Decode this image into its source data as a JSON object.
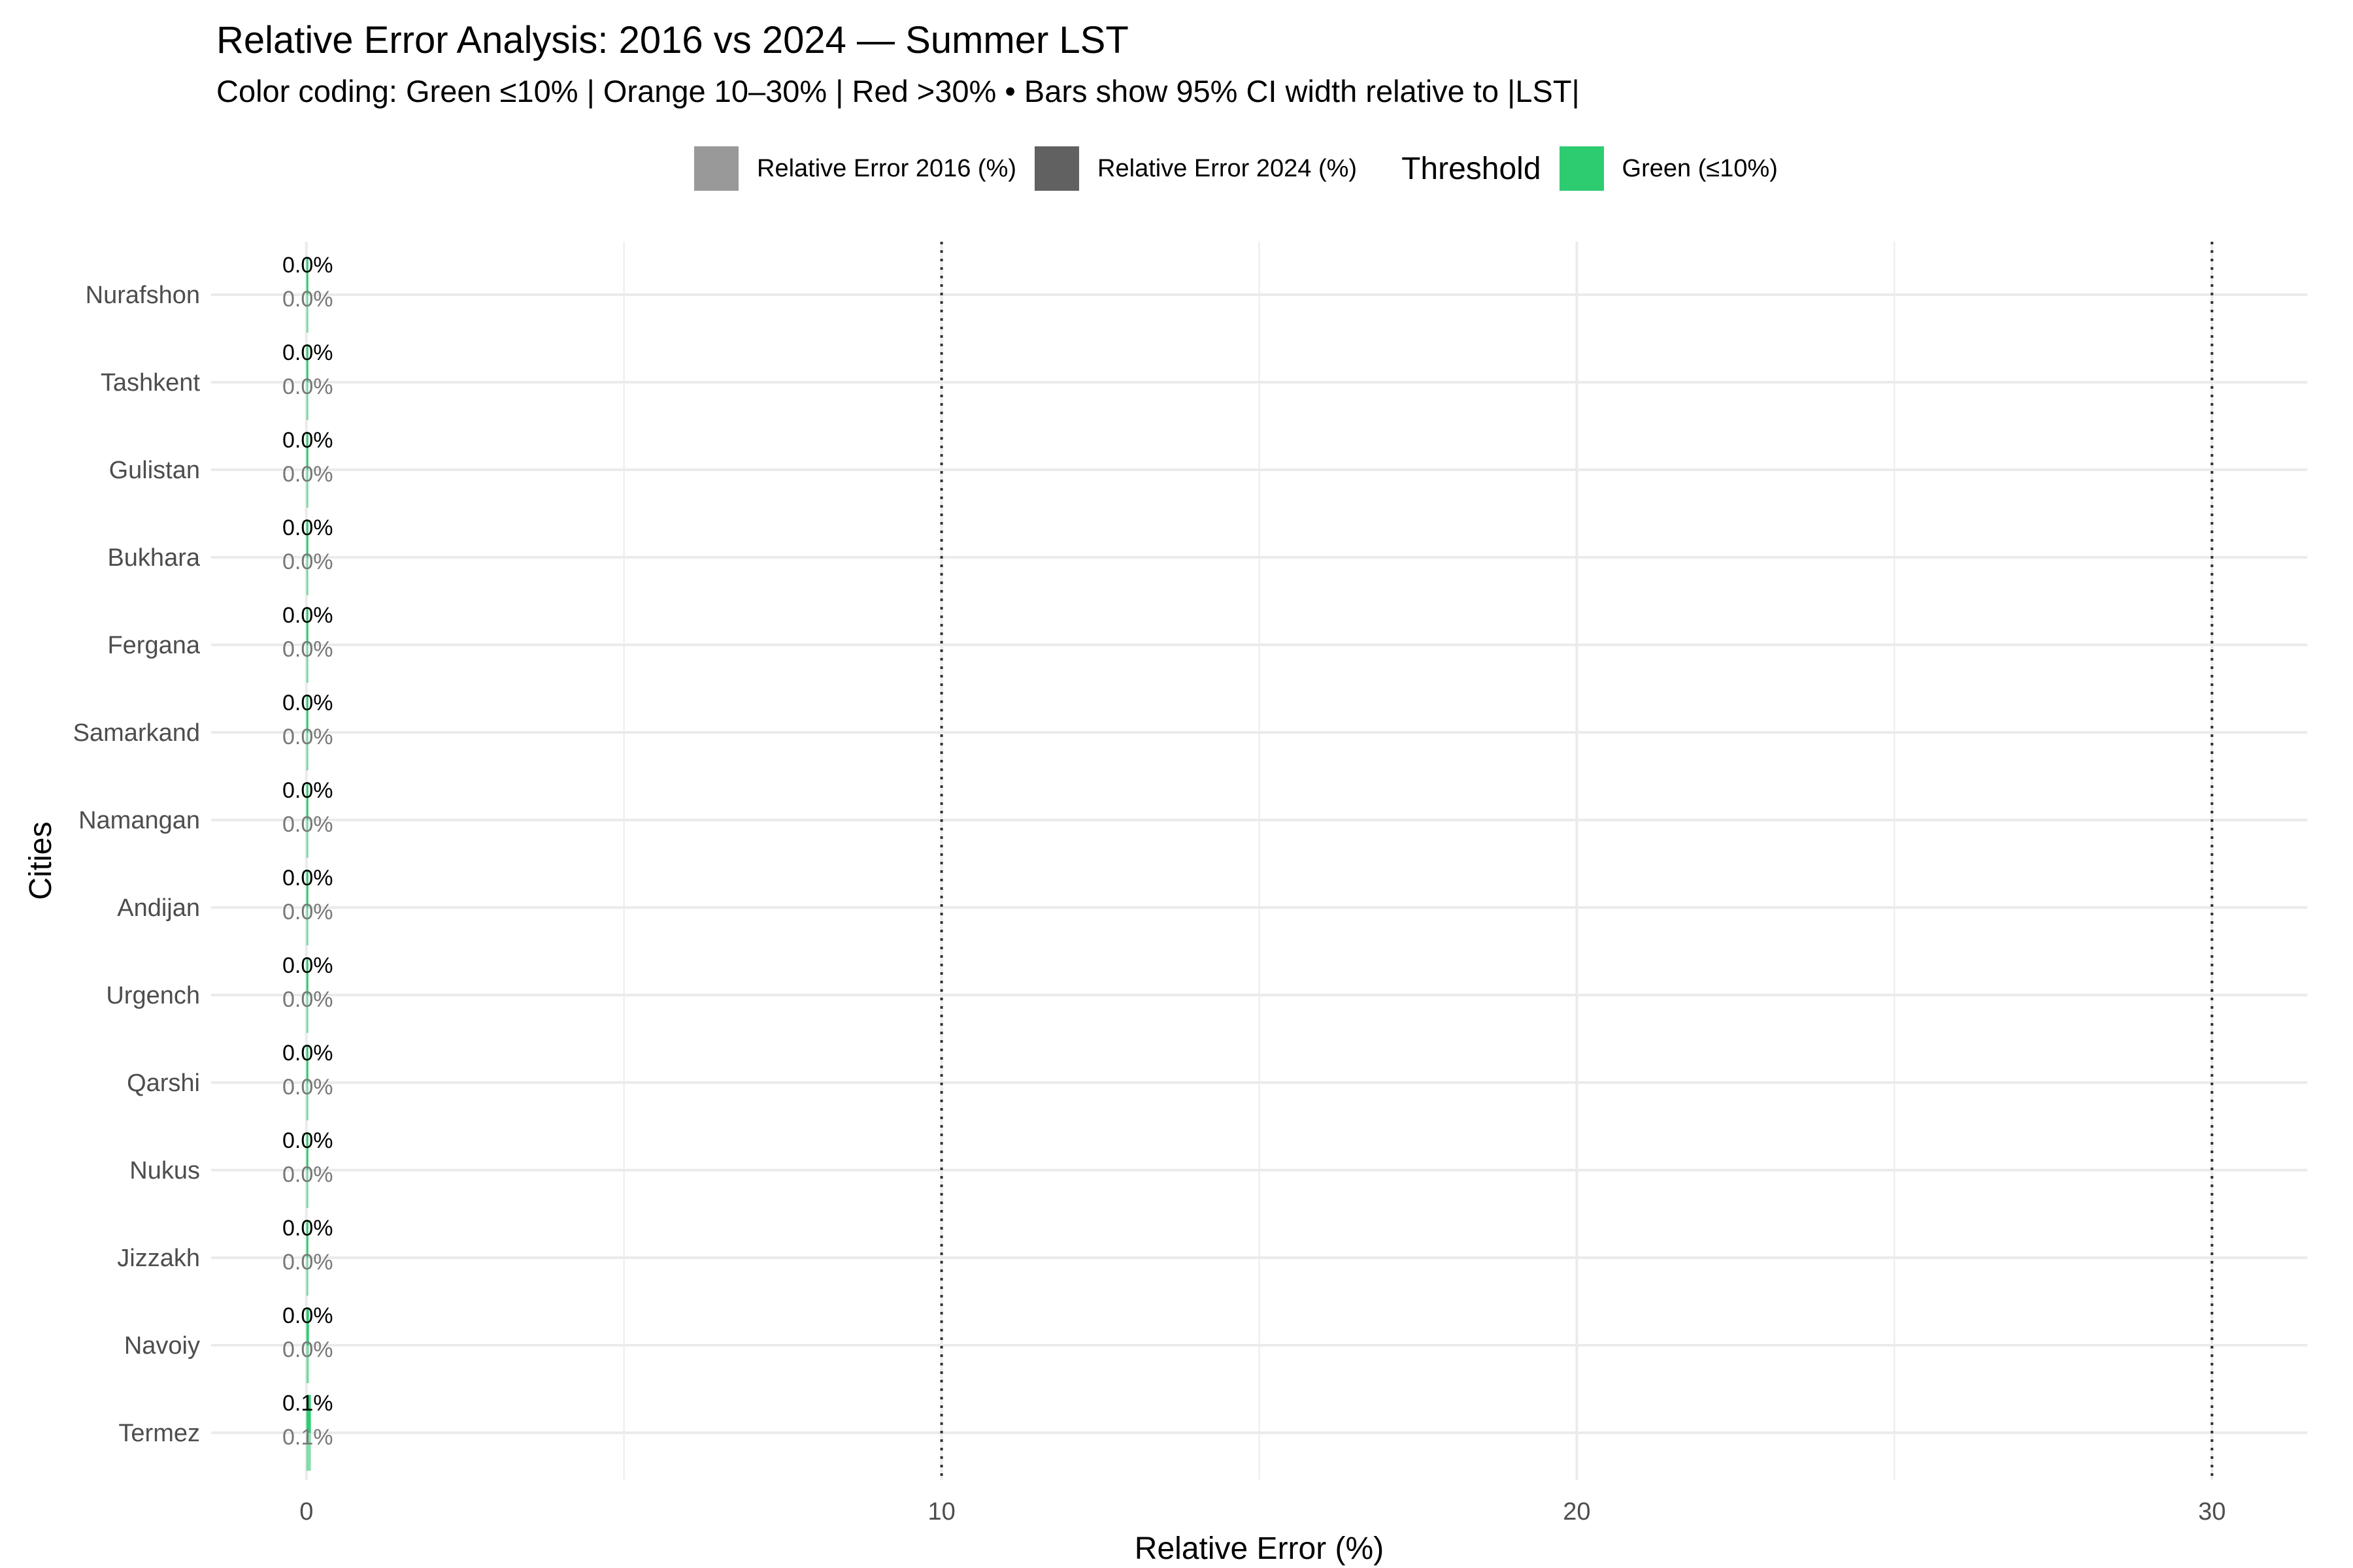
{
  "chart_data": {
    "type": "bar",
    "title": "Relative Error Analysis: 2016 vs 2024 — Summer LST",
    "subtitle": "Color coding: Green ≤10% | Orange 10–30% | Red >30% • Bars show 95% CI width relative to |LST|",
    "xlabel": "Relative Error (%)",
    "ylabel": "Cities",
    "orientation": "horizontal",
    "xlim": [
      -1.5,
      31.5
    ],
    "x_ticks": [
      0,
      10,
      20,
      30
    ],
    "x_tick_labels": [
      "0",
      "10",
      "20",
      "30"
    ],
    "threshold_lines": [
      10,
      30
    ],
    "grid": true,
    "legend_position": "top",
    "categories": [
      "Nurafshon",
      "Tashkent",
      "Gulistan",
      "Bukhara",
      "Fergana",
      "Samarkand",
      "Namangan",
      "Andijan",
      "Urgench",
      "Qarshi",
      "Nukus",
      "Jizzakh",
      "Navoiy",
      "Termez"
    ],
    "series": [
      {
        "name": "Relative Error 2016 (%)",
        "values": [
          0.02,
          0.02,
          0.02,
          0.02,
          0.02,
          0.02,
          0.02,
          0.03,
          0.03,
          0.03,
          0.03,
          0.03,
          0.04,
          0.07
        ],
        "labels": [
          "0.0%",
          "0.0%",
          "0.0%",
          "0.0%",
          "0.0%",
          "0.0%",
          "0.0%",
          "0.0%",
          "0.0%",
          "0.0%",
          "0.0%",
          "0.0%",
          "0.0%",
          "0.1%"
        ]
      },
      {
        "name": "Relative Error 2024 (%)",
        "values": [
          0.02,
          0.02,
          0.02,
          0.02,
          0.02,
          0.02,
          0.02,
          0.03,
          0.03,
          0.03,
          0.03,
          0.03,
          0.04,
          0.07
        ],
        "labels": [
          "0.0%",
          "0.0%",
          "0.0%",
          "0.0%",
          "0.0%",
          "0.0%",
          "0.0%",
          "0.0%",
          "0.0%",
          "0.0%",
          "0.0%",
          "0.0%",
          "0.0%",
          "0.1%"
        ]
      }
    ],
    "legend": {
      "series_items": [
        {
          "label": "Relative Error 2016 (%)",
          "color": "#999999"
        },
        {
          "label": "Relative Error 2024 (%)",
          "color": "#616161"
        }
      ],
      "threshold_title": "Threshold",
      "threshold_items": [
        {
          "label": "Green (≤10%)",
          "color": "#2ECC71"
        }
      ]
    },
    "colors": {
      "green": "#2ECC71",
      "series_2016": "#999999",
      "series_2024": "#616161",
      "label_2016": "#777777",
      "label_2024": "#000000",
      "grid": "#EBEBEB",
      "threshold_line": "#333333"
    }
  }
}
